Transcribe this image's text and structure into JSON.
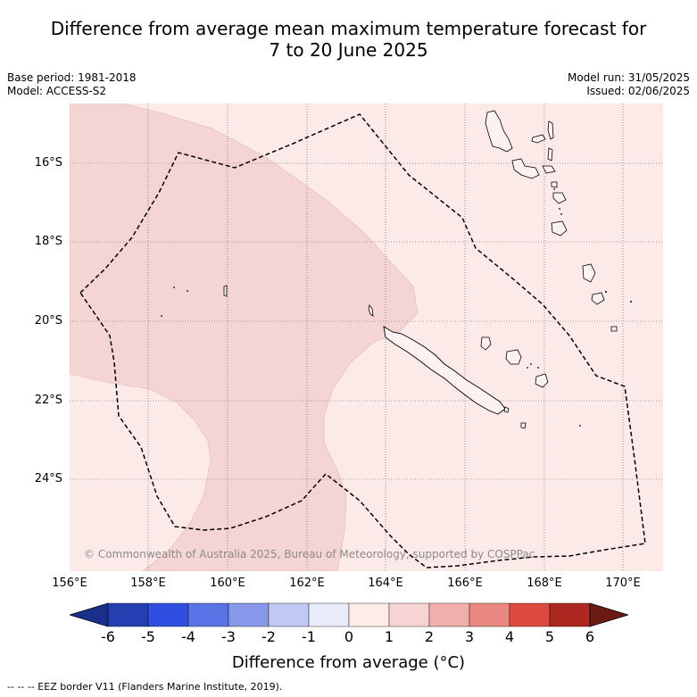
{
  "header": {
    "title_line1": "Difference from average mean maximum temperature forecast for",
    "title_line2": "7 to 20 June 2025"
  },
  "meta_left": {
    "base_period": "Base period: 1981-2018",
    "model": "Model: ACCESS-S2"
  },
  "meta_right": {
    "model_run": "Model run: 31/05/2025",
    "issued": "Issued: 02/06/2025"
  },
  "map": {
    "latitude_labels": [
      "16°S",
      "18°S",
      "20°S",
      "22°S",
      "24°S"
    ],
    "longitude_labels": [
      "156°E",
      "158°E",
      "160°E",
      "162°E",
      "164°E",
      "166°E",
      "168°E",
      "170°E"
    ],
    "watermark": "© Commonwealth of Australia 2025, Bureau of Meteorology, supported by COSPPac",
    "colors": {
      "background_anomaly_0_1": "#fceae8",
      "anomaly_1_2": "#f5d5d4",
      "land_outline": "#000000",
      "eez_border": "#000000",
      "gridline": "#555555"
    }
  },
  "colorbar": {
    "tick_labels": [
      "-6",
      "-5",
      "-4",
      "-3",
      "-2",
      "-1",
      "0",
      "1",
      "2",
      "3",
      "4",
      "5",
      "6"
    ],
    "segment_colors": [
      "#1a2f8a",
      "#243fb0",
      "#2f4fe0",
      "#5a74e6",
      "#8798ea",
      "#c0c8f3",
      "#e8ecfa",
      "#fdece9",
      "#f6d4d3",
      "#f0afab",
      "#e88880",
      "#de4a3d",
      "#ae2822",
      "#6e1a14"
    ],
    "title": "Difference from average (°C)"
  },
  "footnote": "-- -- -- EEZ border V11 (Flanders Marine Institute, 2019)."
}
